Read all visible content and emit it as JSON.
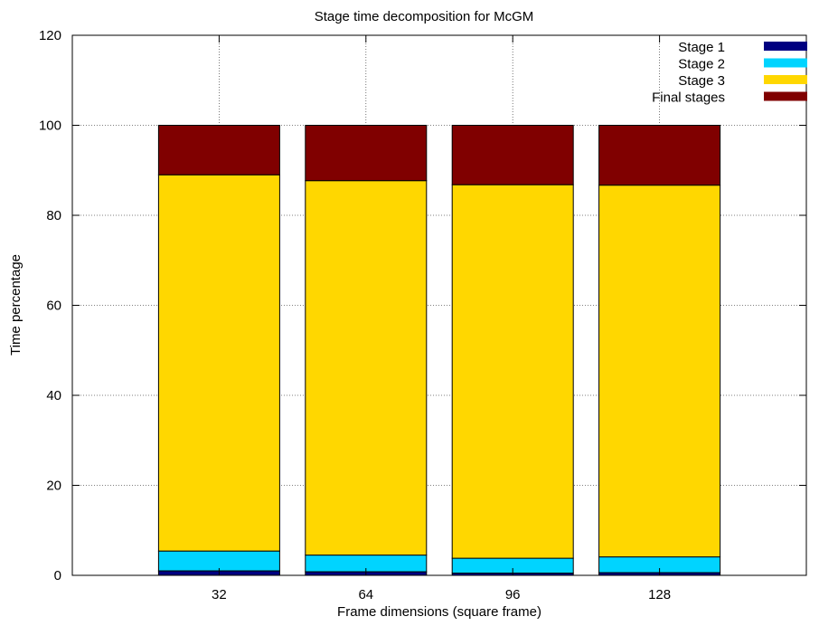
{
  "chart_data": {
    "type": "bar",
    "stacked": true,
    "title": "Stage time decomposition for McGM",
    "xlabel": "Frame dimensions (square frame)",
    "ylabel": "Time percentage",
    "categories": [
      "32",
      "64",
      "96",
      "128"
    ],
    "ylim": [
      0,
      120
    ],
    "yticks": [
      0,
      20,
      40,
      60,
      80,
      100,
      120
    ],
    "grid": true,
    "legend_position": "top-right",
    "series": [
      {
        "name": "Stage 1",
        "color": "#000080",
        "values": [
          1.0,
          0.8,
          0.5,
          0.6
        ]
      },
      {
        "name": "Stage 2",
        "color": "#00d4ff",
        "values": [
          4.4,
          3.7,
          3.3,
          3.5
        ]
      },
      {
        "name": "Stage 3",
        "color": "#ffd700",
        "values": [
          83.6,
          83.2,
          83.0,
          82.6
        ]
      },
      {
        "name": "Final stages",
        "color": "#800000",
        "values": [
          11.0,
          12.3,
          13.2,
          13.3
        ]
      }
    ]
  }
}
